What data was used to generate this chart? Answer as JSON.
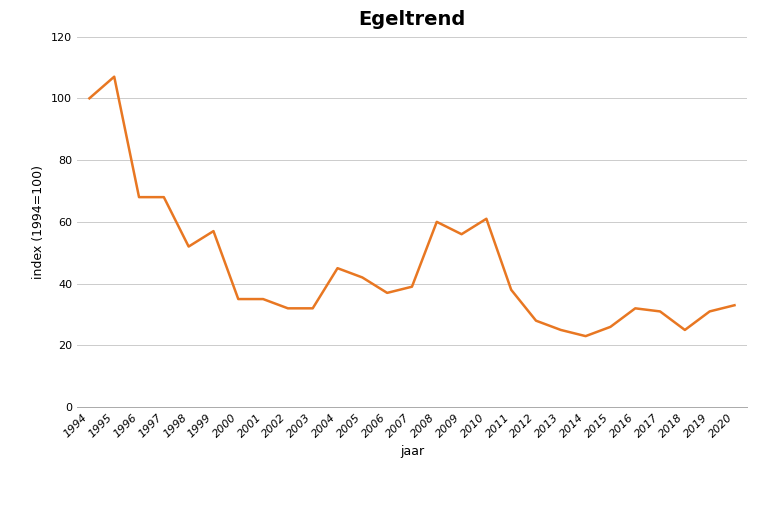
{
  "title": "Egeltrend",
  "xlabel": "jaar",
  "ylabel": "index (1994=100)",
  "years": [
    1994,
    1995,
    1996,
    1997,
    1998,
    1999,
    2000,
    2001,
    2002,
    2003,
    2004,
    2005,
    2006,
    2007,
    2008,
    2009,
    2010,
    2011,
    2012,
    2013,
    2014,
    2015,
    2016,
    2017,
    2018,
    2019,
    2020
  ],
  "values": [
    100,
    107,
    68,
    68,
    52,
    57,
    35,
    35,
    32,
    32,
    45,
    42,
    37,
    39,
    60,
    56,
    61,
    38,
    28,
    25,
    23,
    26,
    32,
    31,
    25,
    31,
    33
  ],
  "line_color": "#E87722",
  "line_width": 1.8,
  "ylim": [
    0,
    120
  ],
  "yticks": [
    0,
    20,
    40,
    60,
    80,
    100,
    120
  ],
  "background_color": "#ffffff",
  "grid_color": "#cccccc",
  "title_fontsize": 14,
  "axis_label_fontsize": 9,
  "tick_fontsize": 8,
  "title_font": "Arial Black"
}
